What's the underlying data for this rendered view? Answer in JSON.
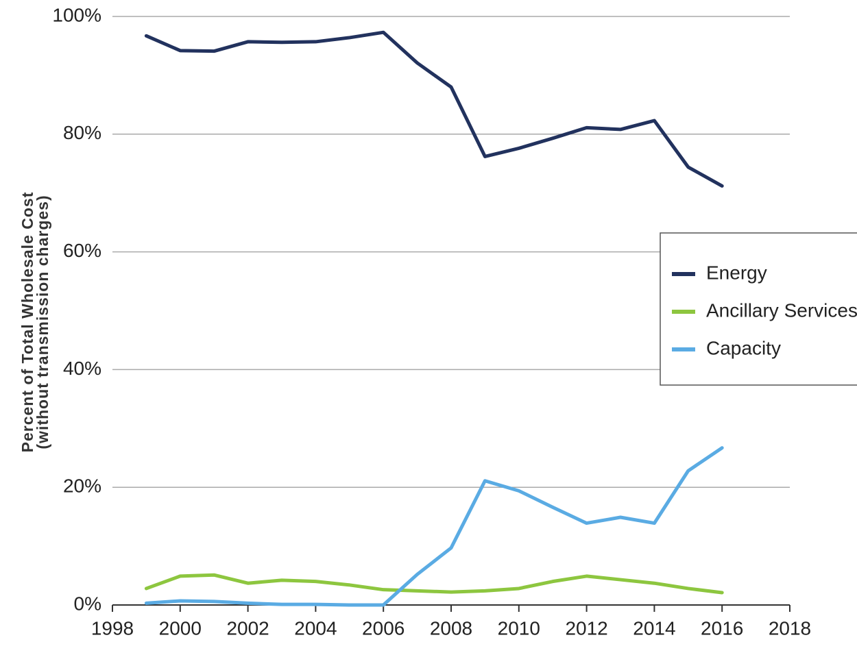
{
  "chart_data": {
    "type": "line",
    "ylabel": [
      "Percent of Total Wholesale Cost",
      "(without transmission charges)"
    ],
    "x": [
      1999,
      2000,
      2001,
      2002,
      2003,
      2004,
      2005,
      2006,
      2007,
      2008,
      2009,
      2010,
      2011,
      2012,
      2013,
      2014,
      2015,
      2016
    ],
    "series": [
      {
        "name": "Energy",
        "color": "#22325e",
        "values": [
          96.7,
          94.2,
          94.1,
          95.7,
          95.6,
          95.7,
          96.4,
          97.3,
          92.1,
          88.0,
          76.2,
          77.6,
          79.3,
          81.1,
          80.8,
          82.3,
          74.4,
          71.2
        ]
      },
      {
        "name": "Ancillary Services",
        "color": "#8dc63f",
        "values": [
          2.8,
          4.9,
          5.1,
          3.7,
          4.2,
          4.0,
          3.4,
          2.6,
          2.4,
          2.2,
          2.4,
          2.8,
          4.0,
          4.9,
          4.3,
          3.7,
          2.8,
          2.1
        ]
      },
      {
        "name": "Capacity",
        "color": "#5aabe3",
        "values": [
          0.3,
          0.7,
          0.6,
          0.3,
          0.1,
          0.1,
          0,
          0,
          5.2,
          9.7,
          21.1,
          19.4,
          16.6,
          13.9,
          14.9,
          13.9,
          22.8,
          26.7
        ]
      }
    ],
    "xlim": [
      1998,
      2018
    ],
    "xticks": [
      1998,
      2000,
      2002,
      2004,
      2006,
      2008,
      2010,
      2012,
      2014,
      2016,
      2018
    ],
    "ylim": [
      0,
      100
    ],
    "yticks": [
      {
        "value": 0,
        "label": "0%"
      },
      {
        "value": 20,
        "label": "20%"
      },
      {
        "value": 40,
        "label": "40%"
      },
      {
        "value": 60,
        "label": "60%"
      },
      {
        "value": 80,
        "label": "80%"
      },
      {
        "value": 100,
        "label": "100%"
      }
    ],
    "grid": true,
    "legend": "right"
  }
}
